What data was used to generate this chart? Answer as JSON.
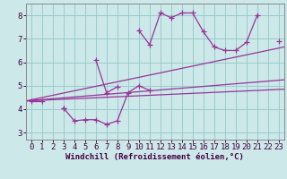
{
  "background_color": "#cce8e8",
  "grid_color": "#99cccc",
  "line_color": "#993399",
  "xlabel": "Windchill (Refroidissement éolien,°C)",
  "xlabel_fontsize": 6.5,
  "tick_fontsize": 6.5,
  "ylim": [
    2.7,
    8.5
  ],
  "xlim": [
    -0.5,
    23.5
  ],
  "yticks": [
    3,
    4,
    5,
    6,
    7,
    8
  ],
  "xticks": [
    0,
    1,
    2,
    3,
    4,
    5,
    6,
    7,
    8,
    9,
    10,
    11,
    12,
    13,
    14,
    15,
    16,
    17,
    18,
    19,
    20,
    21,
    22,
    23
  ],
  "series1_y": [
    4.35,
    4.35,
    null,
    4.05,
    null,
    null,
    6.1,
    4.7,
    4.95,
    null,
    7.35,
    6.75,
    8.1,
    7.9,
    8.1,
    8.1,
    7.3,
    6.65,
    6.5,
    6.5,
    6.85,
    8.0,
    null,
    6.9
  ],
  "series2_y": [
    null,
    null,
    null,
    4.05,
    3.5,
    3.55,
    3.55,
    3.35,
    3.5,
    4.7,
    5.0,
    4.8,
    null,
    null,
    null,
    null,
    null,
    null,
    null,
    null,
    null,
    null,
    null,
    null
  ],
  "line_bottom_y0": 4.35,
  "line_bottom_y1": 4.85,
  "line_mid1_y0": 4.35,
  "line_mid1_y1": 5.25,
  "line_top_y0": 4.35,
  "line_top_y1": 6.65
}
